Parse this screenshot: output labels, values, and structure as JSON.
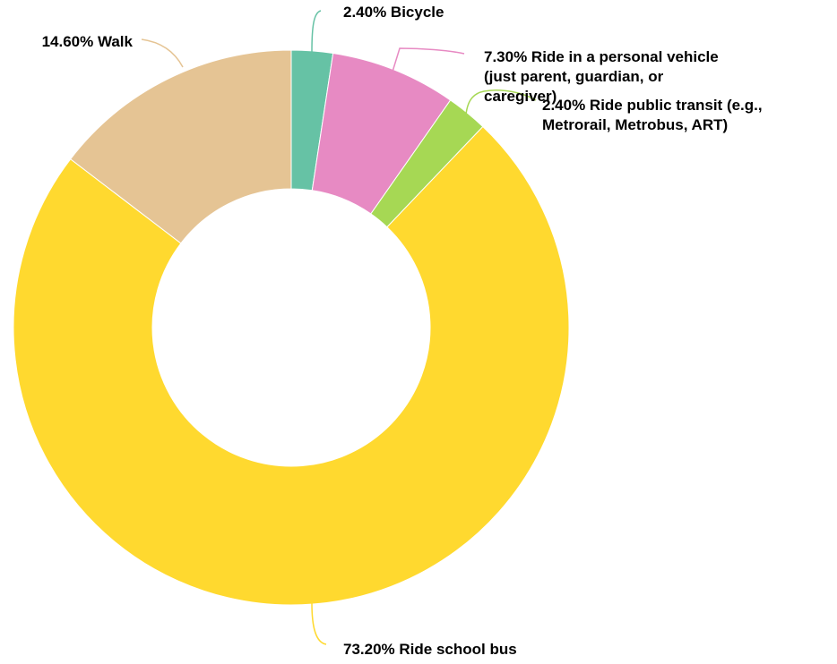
{
  "chart_data": {
    "type": "pie",
    "variant": "donut",
    "slices": [
      {
        "label": "Bicycle",
        "value": 2.4,
        "display": "2.40%",
        "label_lines": [
          "2.40% Bicycle"
        ],
        "color": "#66c2a5"
      },
      {
        "label": "Ride in a personal vehicle (just parent, guardian, or caregiver)",
        "value": 7.3,
        "display": "7.30%",
        "label_lines": [
          "7.30% Ride in a personal vehicle",
          "(just parent, guardian, or",
          "caregiver)"
        ],
        "color": "#e78ac3"
      },
      {
        "label": "Ride public transit (e.g., Metrorail, Metrobus, ART)",
        "value": 2.4,
        "display": "2.40%",
        "label_lines": [
          "2.40% Ride public transit (e.g.,",
          "Metrorail, Metrobus, ART)"
        ],
        "color": "#a6d854"
      },
      {
        "label": "Ride school bus",
        "value": 73.2,
        "display": "73.20%",
        "label_lines": [
          "73.20% Ride school bus"
        ],
        "color": "#ffd92f"
      },
      {
        "label": "Walk",
        "value": 14.6,
        "display": "14.60%",
        "label_lines": [
          "14.60% Walk"
        ],
        "color": "#e5c494"
      }
    ]
  }
}
